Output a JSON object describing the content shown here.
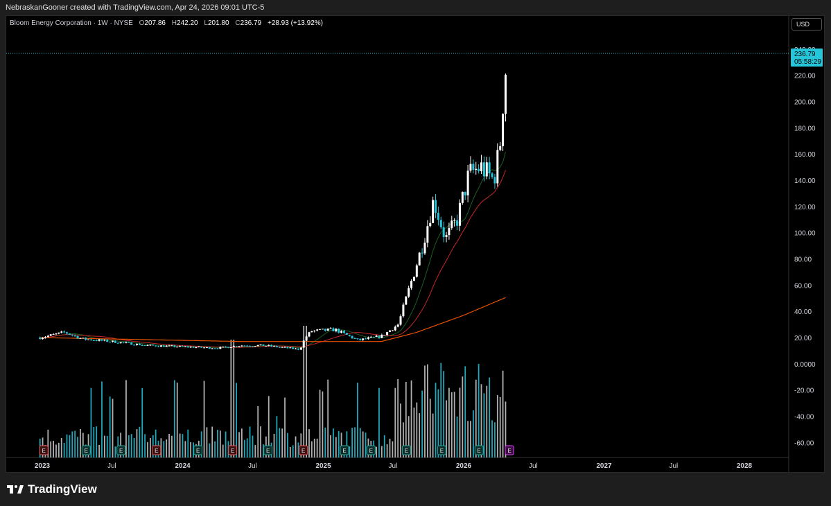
{
  "header": {
    "caption": "NebraskanGooner created with TradingView.com, Apr 24, 2026 09:01 UTC-5"
  },
  "legend": {
    "symbol": "Bloom Energy Corporation · 1W · NYSE",
    "open_label": "O",
    "open": "207.86",
    "high_label": "H",
    "high": "242.20",
    "low_label": "L",
    "low": "201.80",
    "close_label": "C",
    "close": "236.79",
    "change": "+28.93 (+13.92%)"
  },
  "currency_button": "USD",
  "price_tag": {
    "price": "236.79",
    "countdown": "05:58:29"
  },
  "brand": {
    "name": "TradingView"
  },
  "colors": {
    "up": "#ffffff",
    "down": "#26c6da",
    "ma_short": "#1b5e20",
    "ma_mid": "#c62828",
    "ma_long": "#e65100",
    "earnings_red": "#ef5350",
    "earnings_green": "#26a69a",
    "earnings_next": "#e040fb",
    "price_line": "#26c6da"
  },
  "chart_data": {
    "type": "candlestick",
    "interval": "1W",
    "y_ticks": [
      "240.00",
      "220.00",
      "200.00",
      "180.00",
      "160.00",
      "140.00",
      "120.00",
      "100.00",
      "80.00",
      "60.00",
      "40.00",
      "20.00",
      "0.0000",
      "-20.00",
      "-40.00",
      "-60.00"
    ],
    "ylim": [
      -70,
      245
    ],
    "x_ticks": [
      "2023",
      "Jul",
      "2024",
      "Jul",
      "2025",
      "Jul",
      "2026",
      "Jul",
      "2027",
      "Jul",
      "2028"
    ],
    "last_close": 236.79,
    "price_keypoints": [
      [
        "2022-12-26",
        20
      ],
      [
        "2023-03-01",
        24
      ],
      [
        "2023-04-15",
        19
      ],
      [
        "2023-07-01",
        17
      ],
      [
        "2023-10-01",
        14
      ],
      [
        "2024-01-01",
        13
      ],
      [
        "2024-04-01",
        12
      ],
      [
        "2024-06-01",
        14
      ],
      [
        "2024-08-01",
        14
      ],
      [
        "2024-11-01",
        11
      ],
      [
        "2024-11-15",
        20
      ],
      [
        "2024-12-01",
        25
      ],
      [
        "2025-02-01",
        26
      ],
      [
        "2025-04-01",
        18
      ],
      [
        "2025-06-01",
        21
      ],
      [
        "2025-07-15",
        30
      ],
      [
        "2025-08-15",
        60
      ],
      [
        "2025-09-15",
        90
      ],
      [
        "2025-10-15",
        125
      ],
      [
        "2025-11-15",
        95
      ],
      [
        "2025-12-15",
        110
      ],
      [
        "2026-01-15",
        145
      ],
      [
        "2026-02-15",
        150
      ],
      [
        "2026-03-20",
        140
      ],
      [
        "2026-04-05",
        165
      ],
      [
        "2026-04-15",
        208
      ],
      [
        "2026-04-24",
        236.79
      ]
    ],
    "ma_long_keypoints": [
      [
        "2022-12-26",
        20
      ],
      [
        "2024-06-01",
        17
      ],
      [
        "2025-06-01",
        17
      ],
      [
        "2025-09-01",
        24
      ],
      [
        "2026-01-01",
        37
      ],
      [
        "2026-04-24",
        51
      ]
    ],
    "earnings": [
      {
        "date": "2023-01-05",
        "type": "E",
        "result": "miss"
      },
      {
        "date": "2023-04-25",
        "type": "E",
        "result": "beat"
      },
      {
        "date": "2023-07-25",
        "type": "E",
        "result": "beat"
      },
      {
        "date": "2023-10-25",
        "type": "E",
        "result": "miss"
      },
      {
        "date": "2024-02-10",
        "type": "E",
        "result": "beat"
      },
      {
        "date": "2024-05-10",
        "type": "E",
        "result": "miss"
      },
      {
        "date": "2024-08-10",
        "type": "E",
        "result": "beat"
      },
      {
        "date": "2024-11-10",
        "type": "E",
        "result": "miss"
      },
      {
        "date": "2025-02-25",
        "type": "E",
        "result": "beat"
      },
      {
        "date": "2025-05-05",
        "type": "E",
        "result": "beat"
      },
      {
        "date": "2025-08-05",
        "type": "E",
        "result": "beat"
      },
      {
        "date": "2025-11-05",
        "type": "E",
        "result": "beat"
      },
      {
        "date": "2026-02-10",
        "type": "E",
        "result": "beat"
      },
      {
        "date": "2026-04-30",
        "type": "E",
        "result": "upcoming"
      }
    ]
  }
}
